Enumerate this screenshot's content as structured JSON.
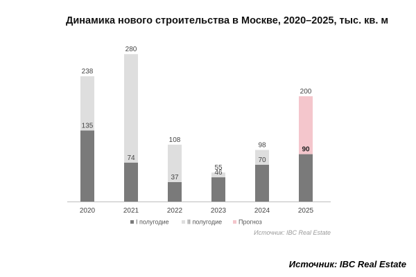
{
  "chart_data": {
    "type": "bar",
    "stacked": true,
    "title": "Динамика нового строительства в Москве, 2020–2025, тыс. кв. м",
    "categories": [
      "2020",
      "2021",
      "2022",
      "2023",
      "2024",
      "2025"
    ],
    "series": [
      {
        "name": "I полугодие",
        "values": [
          135,
          74,
          37,
          46,
          70,
          90
        ],
        "color": "#7a7a7a"
      },
      {
        "name": "II полугодие",
        "values": [
          103,
          206,
          71,
          9,
          28,
          null
        ],
        "color": "#dedede"
      },
      {
        "name": "Прогноз",
        "values": [
          null,
          null,
          null,
          null,
          null,
          110
        ],
        "color": "#f4c6cc"
      }
    ],
    "total_labels": [
      "238",
      "280",
      "108",
      "55",
      "98",
      "200"
    ],
    "h1_labels": [
      "135",
      "74",
      "37",
      "46",
      "70",
      "90"
    ],
    "h1_label_bold": [
      false,
      false,
      false,
      false,
      false,
      true
    ],
    "ylim": [
      0,
      300
    ],
    "grid": false,
    "legend_position": "bottom",
    "source_note": "Источник: IBC Real Estate"
  },
  "footer": {
    "source": "Источник: IBC Real Estate"
  }
}
